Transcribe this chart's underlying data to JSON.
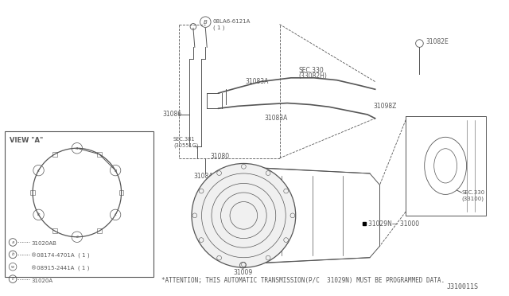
{
  "bg_color": "#ffffff",
  "fig_width": 6.4,
  "fig_height": 3.72,
  "attention_text": "*ATTENTION; THIS AUTOMATIC TRANSMISSION(P/C  31029N) MUST BE PROGRAMMED DATA.",
  "diagram_id": "J310011S",
  "view_a_label": "VIEW \"A\"",
  "gray": "#555555",
  "lgray": "#888888"
}
